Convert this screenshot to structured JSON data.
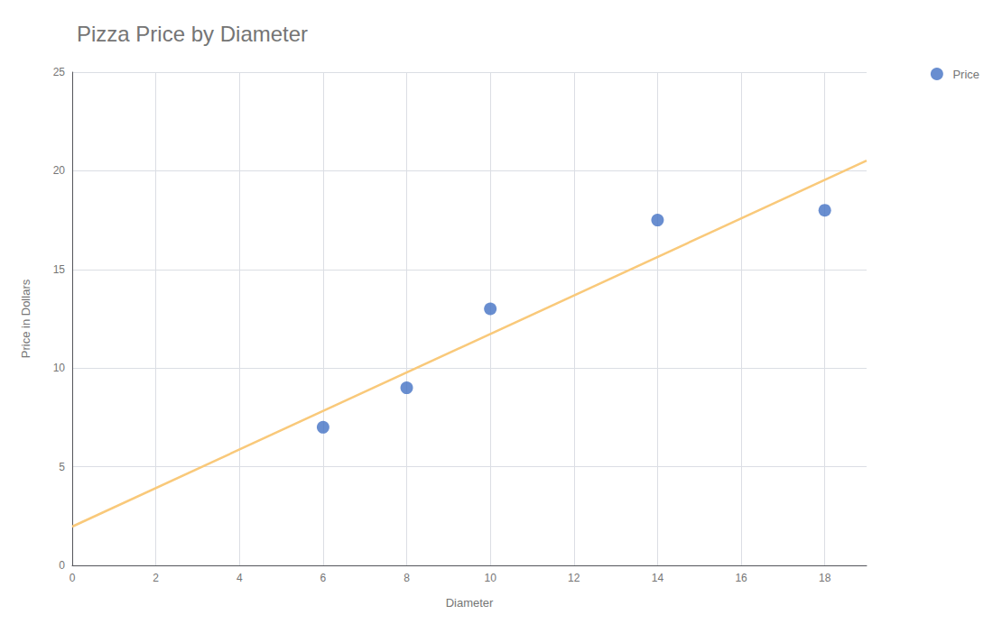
{
  "chart_data": {
    "type": "scatter",
    "title": "Pizza Price by Diameter",
    "xlabel": "Diameter",
    "ylabel": "Price in Dollars",
    "series": [
      {
        "name": "Price",
        "type": "scatter",
        "color": "#4472C4",
        "marker": "circle",
        "x": [
          6,
          8,
          10,
          14,
          18
        ],
        "values": [
          7,
          9,
          13,
          17.5,
          18
        ]
      },
      {
        "type": "line",
        "color": "#F9C97A",
        "line_style": "solid",
        "x": [
          0,
          19
        ],
        "values": [
          1.9655172413793103,
          20.51508620689655
        ]
      }
    ],
    "xlim": [
      0,
      19
    ],
    "ylim": [
      0,
      25
    ],
    "xticks": [
      0,
      2,
      4,
      6,
      8,
      10,
      12,
      14,
      16,
      18
    ],
    "yticks": [
      0,
      5,
      10,
      15,
      20,
      25
    ],
    "grid": true,
    "legend": "upper right"
  }
}
